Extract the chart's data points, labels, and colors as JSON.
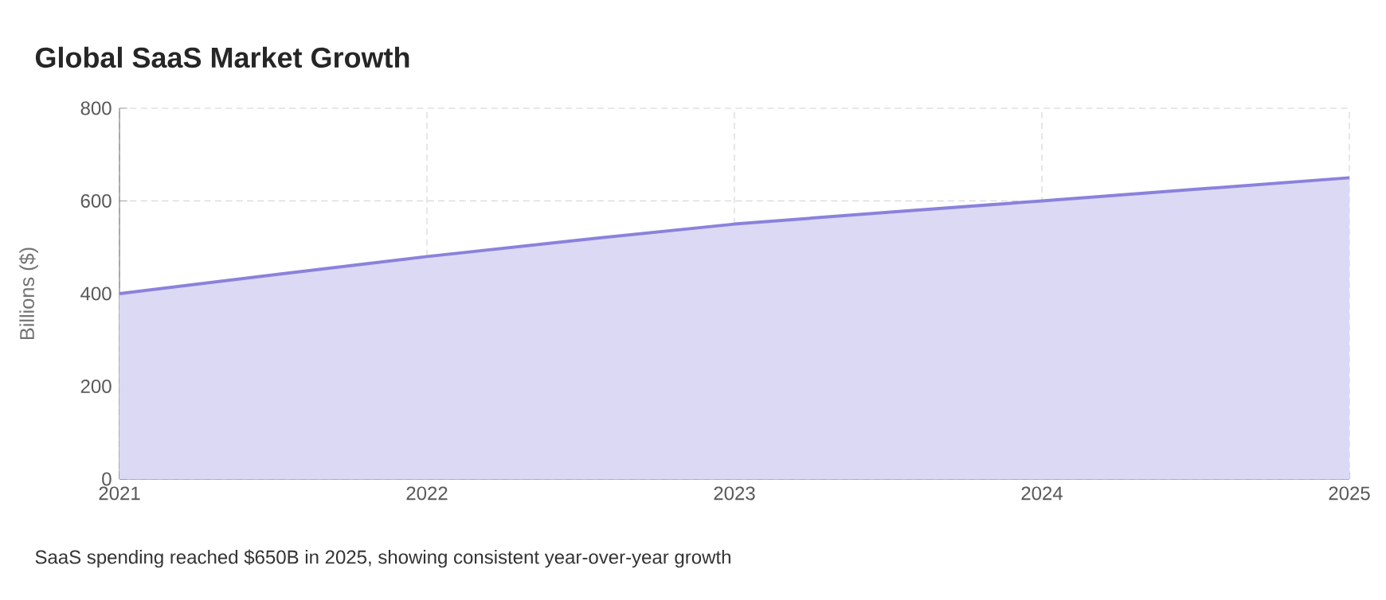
{
  "chart_data": {
    "type": "area",
    "title": "Global SaaS Market Growth",
    "ylabel": "Billions ($)",
    "categories": [
      "2021",
      "2022",
      "2023",
      "2024",
      "2025"
    ],
    "series": [
      {
        "color": "#8a82dc",
        "values": [
          400,
          480,
          550,
          600,
          650
        ]
      }
    ],
    "ylim": [
      0,
      800
    ],
    "yticks": [
      0,
      200,
      400,
      600,
      800
    ],
    "grid": true,
    "marker": "none",
    "line_style": "solid",
    "annotations": [
      "SaaS spending reached $650B in 2025, showing consistent year-over-year growth"
    ]
  }
}
